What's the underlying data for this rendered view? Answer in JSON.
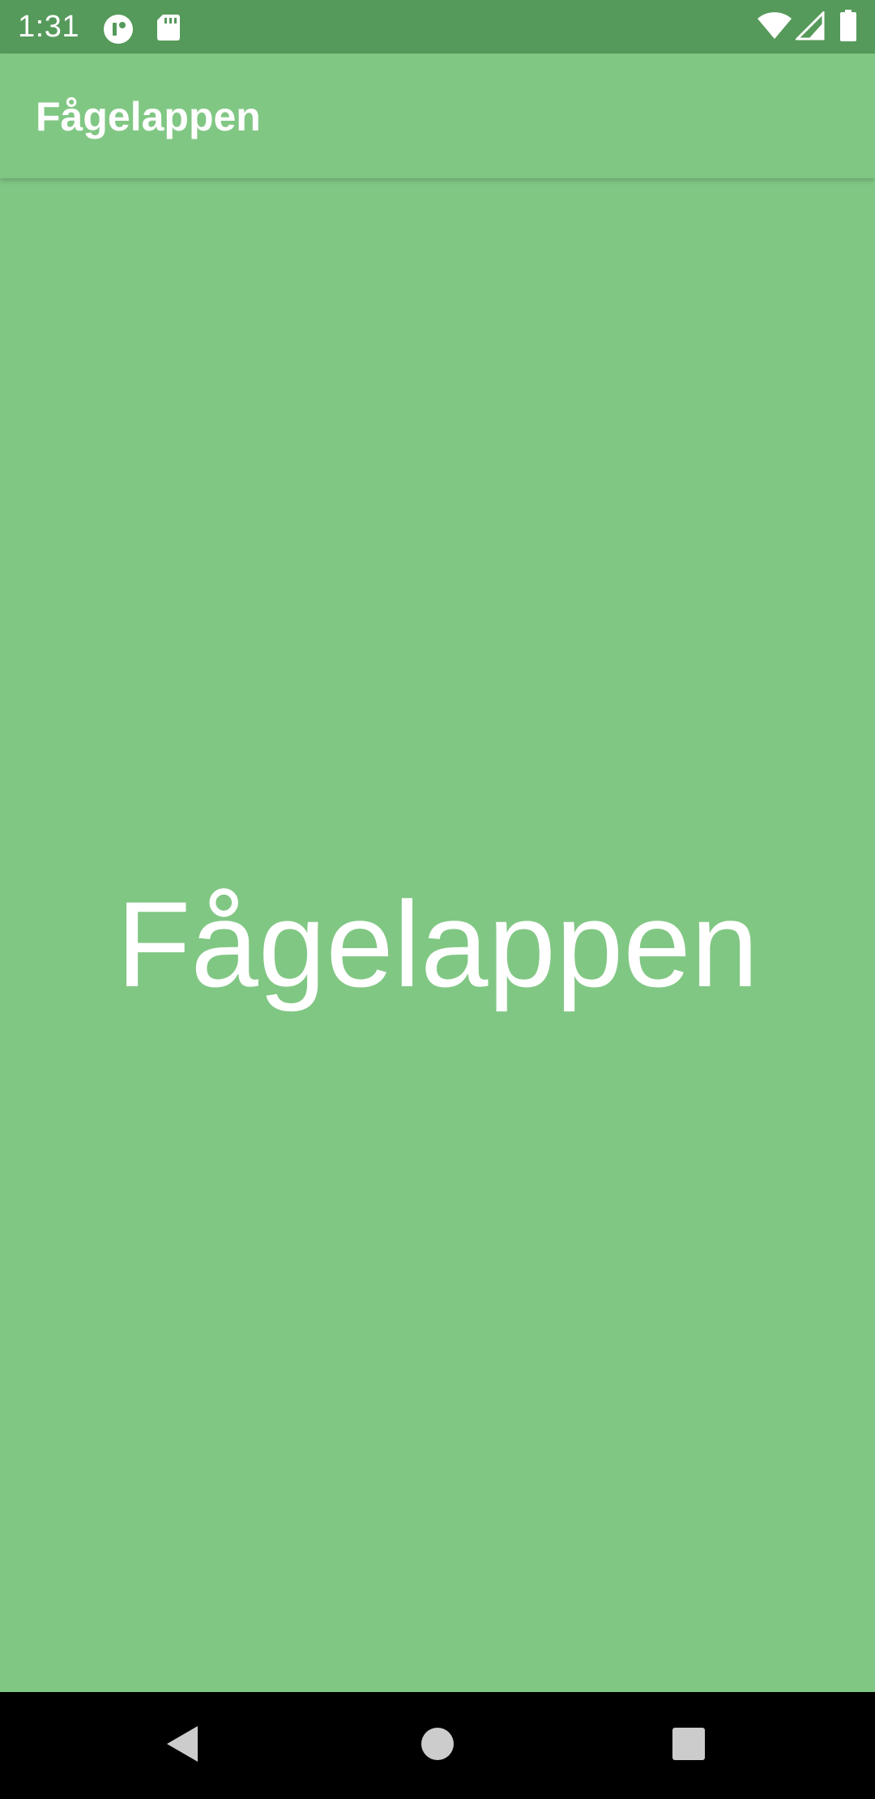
{
  "status_bar": {
    "time": "1:31",
    "icons": [
      "app-notification-icon",
      "sd-card-icon",
      "wifi-icon",
      "cell-signal-icon",
      "battery-icon"
    ]
  },
  "app_bar": {
    "title": "Fågelappen"
  },
  "main": {
    "label": "Fågelappen"
  },
  "nav_bar": {
    "buttons": [
      "back-icon",
      "home-icon",
      "recents-icon"
    ]
  },
  "colors": {
    "status_bar": "#559a5a",
    "primary": "#81c784",
    "text": "#ffffff",
    "nav_bar": "#000000",
    "nav_icon": "#cccccc"
  }
}
